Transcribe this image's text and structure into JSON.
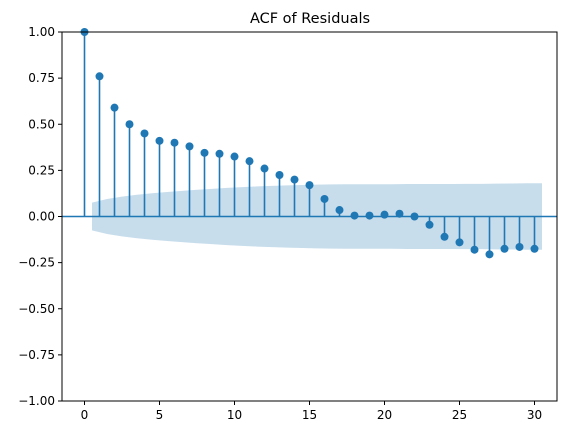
{
  "chart_data": {
    "type": "stem",
    "title": "ACF of Residuals",
    "xlabel": "",
    "ylabel": "",
    "xlim": [
      -1.5,
      31.5
    ],
    "ylim": [
      -1.0,
      1.0
    ],
    "x_ticks": [
      0,
      5,
      10,
      15,
      20,
      25,
      30
    ],
    "x_tick_labels": [
      "0",
      "5",
      "10",
      "15",
      "20",
      "25",
      "30"
    ],
    "y_ticks": [
      -1.0,
      -0.75,
      -0.5,
      -0.25,
      0.0,
      0.25,
      0.5,
      0.75,
      1.0
    ],
    "y_tick_labels": [
      "−1.00",
      "−0.75",
      "−0.50",
      "−0.25",
      "0.00",
      "0.25",
      "0.50",
      "0.75",
      "1.00"
    ],
    "lags": [
      0,
      1,
      2,
      3,
      4,
      5,
      6,
      7,
      8,
      9,
      10,
      11,
      12,
      13,
      14,
      15,
      16,
      17,
      18,
      19,
      20,
      21,
      22,
      23,
      24,
      25,
      26,
      27,
      28,
      29,
      30
    ],
    "values": [
      1.0,
      0.76,
      0.59,
      0.5,
      0.45,
      0.41,
      0.4,
      0.38,
      0.345,
      0.34,
      0.325,
      0.3,
      0.26,
      0.225,
      0.2,
      0.17,
      0.095,
      0.035,
      0.005,
      0.005,
      0.01,
      0.015,
      0.0,
      -0.045,
      -0.11,
      -0.14,
      -0.18,
      -0.205,
      -0.175,
      -0.165,
      -0.175
    ],
    "confidence_band": {
      "x": [
        0.5,
        1.5,
        2.5,
        3.5,
        4.5,
        5.5,
        6.5,
        7.5,
        8.5,
        9.5,
        10.5,
        11.5,
        12.5,
        13.5,
        14.5,
        15.5,
        16.5,
        17.5,
        18.5,
        19.5,
        20.5,
        21.5,
        22.5,
        23.5,
        24.5,
        25.5,
        26.5,
        27.5,
        28.5,
        29.5,
        30.5
      ],
      "upper": [
        0.075,
        0.095,
        0.108,
        0.118,
        0.126,
        0.133,
        0.139,
        0.145,
        0.15,
        0.155,
        0.159,
        0.163,
        0.166,
        0.169,
        0.171,
        0.173,
        0.174,
        0.175,
        0.175,
        0.175,
        0.175,
        0.176,
        0.176,
        0.176,
        0.176,
        0.177,
        0.177,
        0.178,
        0.179,
        0.18,
        0.18
      ],
      "lower": [
        -0.075,
        -0.095,
        -0.108,
        -0.118,
        -0.126,
        -0.133,
        -0.139,
        -0.145,
        -0.15,
        -0.155,
        -0.159,
        -0.163,
        -0.166,
        -0.169,
        -0.171,
        -0.173,
        -0.174,
        -0.175,
        -0.175,
        -0.175,
        -0.175,
        -0.176,
        -0.176,
        -0.176,
        -0.176,
        -0.177,
        -0.177,
        -0.178,
        -0.179,
        -0.18,
        -0.18
      ]
    },
    "grid": false,
    "legend": "none",
    "colors": {
      "stem": "#1f77b4",
      "marker": "#1f77b4",
      "band": "#1f77b4",
      "zero_line": "#1f77b4"
    }
  }
}
